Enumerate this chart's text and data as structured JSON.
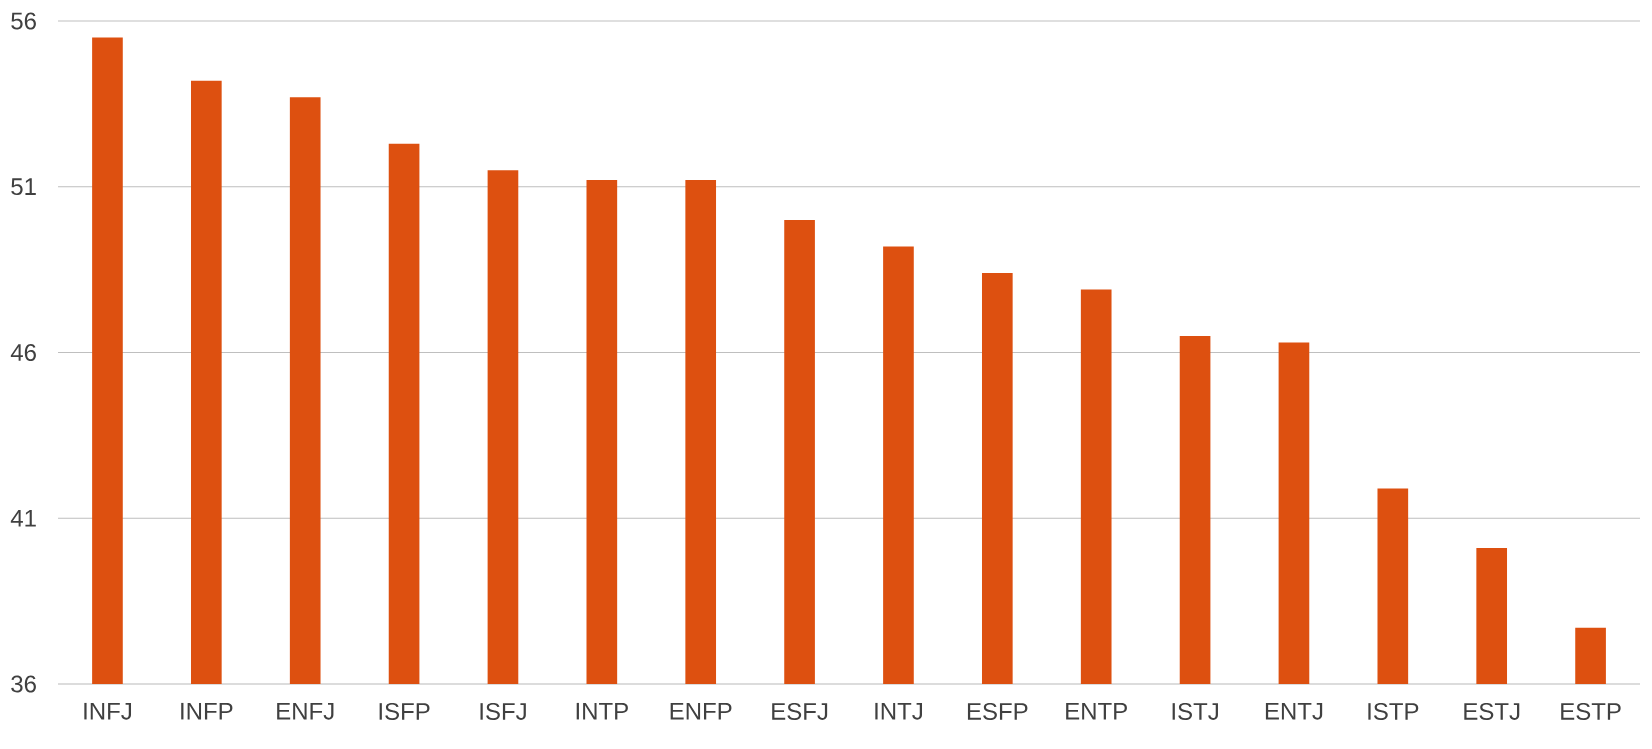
{
  "chart_data": {
    "type": "bar",
    "categories": [
      "INFJ",
      "INFP",
      "ENFJ",
      "ISFP",
      "ISFJ",
      "INTP",
      "ENFP",
      "ESFJ",
      "INTJ",
      "ESFP",
      "ENTP",
      "ISTJ",
      "ENTJ",
      "ISTP",
      "ESTJ",
      "ESTP"
    ],
    "values": [
      55.5,
      54.2,
      53.7,
      52.3,
      51.5,
      51.2,
      51.2,
      50.0,
      49.2,
      48.4,
      47.9,
      46.5,
      46.3,
      41.9,
      40.1,
      37.7
    ],
    "color": "#dd5010",
    "ylim": [
      36,
      56
    ],
    "yticks": [
      36,
      41,
      46,
      51,
      56
    ],
    "grid": "y"
  }
}
